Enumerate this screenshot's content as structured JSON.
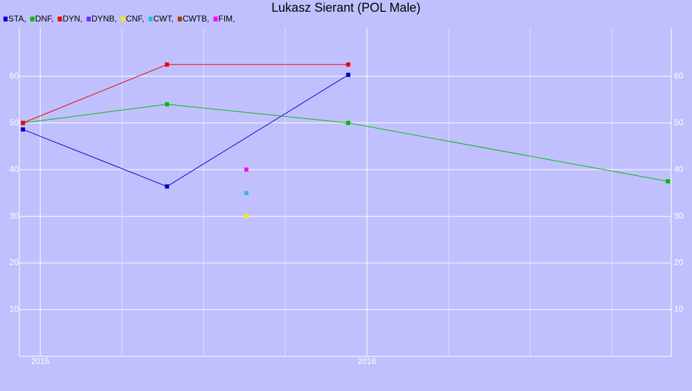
{
  "chart_data": {
    "type": "line",
    "title": "Lukasz Sierant (POL Male)",
    "xlim": [
      2014.936,
      2016.932
    ],
    "xticks": [
      2015,
      2016
    ],
    "x_grid": [
      2015.25,
      2015.5,
      2015.75,
      2016.25,
      2016.5,
      2016.75
    ],
    "ylim": [
      0,
      70.4
    ],
    "yticks": [
      10,
      20,
      30,
      40,
      50,
      60
    ],
    "grid": true,
    "background": "#c0c0ff",
    "series": [
      {
        "name": "STA,",
        "color": "#0000cc",
        "x": [
          2014.947,
          2015.388,
          2015.943
        ],
        "values": [
          48.6,
          36.4,
          60.3
        ]
      },
      {
        "name": "DNF,",
        "color": "#00bb00",
        "x": [
          2014.947,
          2015.388,
          2015.943,
          2016.922
        ],
        "values": [
          50,
          54,
          50,
          37.5
        ]
      },
      {
        "name": "DYN,",
        "color": "#ee0000",
        "x": [
          2014.947,
          2015.388,
          2015.943
        ],
        "values": [
          50,
          62.5,
          62.5
        ]
      },
      {
        "name": "DYNB,",
        "color": "#6633ff",
        "x": [],
        "values": []
      },
      {
        "name": "CNF,",
        "color": "#eeee00",
        "x": [
          2015.631
        ],
        "values": [
          30
        ]
      },
      {
        "name": "CWT,",
        "color": "#33bbdd",
        "x": [
          2015.631
        ],
        "values": [
          35
        ]
      },
      {
        "name": "CWTB,",
        "color": "#994400",
        "x": [],
        "values": []
      },
      {
        "name": "FIM,",
        "color": "#ff00ff",
        "x": [
          2015.631
        ],
        "values": [
          40
        ]
      }
    ]
  }
}
